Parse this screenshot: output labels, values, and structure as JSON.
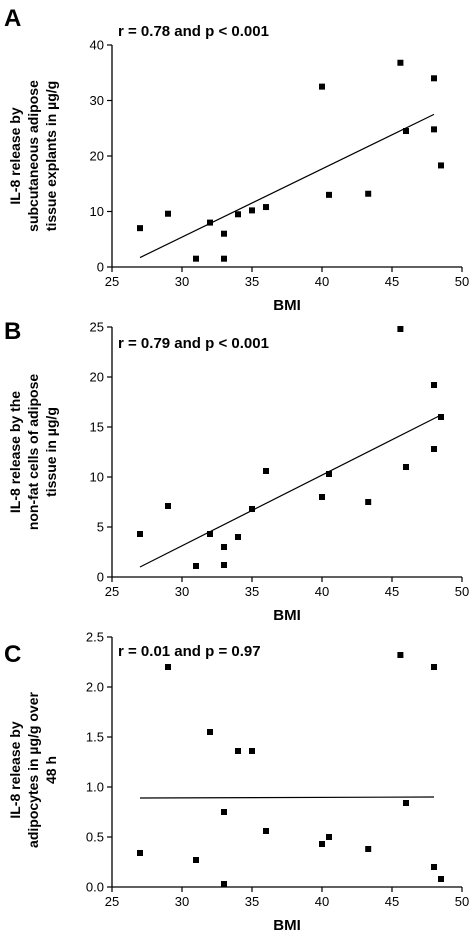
{
  "chart_data": [
    {
      "type": "scatter",
      "panel_label": "A",
      "title": "r = 0.78 and p < 0.001",
      "xlabel": "BMI",
      "ylabel_lines": [
        "IL-8 release by",
        "subcutaneous adipose",
        "tissue explants in µg/g"
      ],
      "xlim": [
        25,
        50
      ],
      "ylim": [
        0,
        40
      ],
      "xticks": [
        25,
        30,
        35,
        40,
        45,
        50
      ],
      "yticks": [
        0,
        10,
        20,
        30,
        40
      ],
      "grid": false,
      "points": [
        {
          "x": 27.0,
          "y": 7.0
        },
        {
          "x": 29.0,
          "y": 9.6
        },
        {
          "x": 31.0,
          "y": 1.5
        },
        {
          "x": 32.0,
          "y": 8.0
        },
        {
          "x": 33.0,
          "y": 1.5
        },
        {
          "x": 33.0,
          "y": 6.0
        },
        {
          "x": 34.0,
          "y": 9.5
        },
        {
          "x": 35.0,
          "y": 10.2
        },
        {
          "x": 36.0,
          "y": 10.8
        },
        {
          "x": 40.0,
          "y": 32.5
        },
        {
          "x": 40.5,
          "y": 13.0
        },
        {
          "x": 43.3,
          "y": 13.2
        },
        {
          "x": 45.6,
          "y": 36.8
        },
        {
          "x": 46.0,
          "y": 24.5
        },
        {
          "x": 48.0,
          "y": 34.0
        },
        {
          "x": 48.0,
          "y": 24.8
        },
        {
          "x": 48.5,
          "y": 18.3
        }
      ],
      "fit_line": [
        {
          "x": 27.0,
          "y": 1.7
        },
        {
          "x": 48.0,
          "y": 27.5
        }
      ]
    },
    {
      "type": "scatter",
      "panel_label": "B",
      "title": "r = 0.79 and p < 0.001",
      "xlabel": "BMI",
      "ylabel_lines": [
        "IL-8 release by the",
        "non-fat cells of adipose",
        "tissue in µg/g"
      ],
      "xlim": [
        25,
        50
      ],
      "ylim": [
        0,
        25
      ],
      "xticks": [
        25,
        30,
        35,
        40,
        45,
        50
      ],
      "yticks": [
        0,
        5,
        10,
        15,
        20,
        25
      ],
      "grid": false,
      "points": [
        {
          "x": 27.0,
          "y": 4.3
        },
        {
          "x": 29.0,
          "y": 7.1
        },
        {
          "x": 31.0,
          "y": 1.1
        },
        {
          "x": 32.0,
          "y": 4.3
        },
        {
          "x": 33.0,
          "y": 3.0
        },
        {
          "x": 33.0,
          "y": 1.2
        },
        {
          "x": 34.0,
          "y": 4.0
        },
        {
          "x": 35.0,
          "y": 6.8
        },
        {
          "x": 36.0,
          "y": 10.6
        },
        {
          "x": 40.0,
          "y": 8.0
        },
        {
          "x": 40.5,
          "y": 10.3
        },
        {
          "x": 43.3,
          "y": 7.5
        },
        {
          "x": 45.6,
          "y": 24.8
        },
        {
          "x": 46.0,
          "y": 11.0
        },
        {
          "x": 48.0,
          "y": 19.2
        },
        {
          "x": 48.0,
          "y": 12.8
        },
        {
          "x": 48.5,
          "y": 16.0
        }
      ],
      "fit_line": [
        {
          "x": 27.0,
          "y": 1.0
        },
        {
          "x": 48.5,
          "y": 16.2
        }
      ]
    },
    {
      "type": "scatter",
      "panel_label": "C",
      "title": "r = 0.01 and p = 0.97",
      "xlabel": "BMI",
      "ylabel_lines": [
        "IL-8 release by",
        "adipocytes in µg/g over",
        "48 h"
      ],
      "xlim": [
        25,
        50
      ],
      "ylim": [
        0,
        2.5
      ],
      "xticks": [
        25,
        30,
        35,
        40,
        45,
        50
      ],
      "yticks": [
        0.0,
        0.5,
        1.0,
        1.5,
        2.0,
        2.5
      ],
      "ytick_labels": [
        "0.0",
        "0.5",
        "1.0",
        "1.5",
        "2.0",
        "2.5"
      ],
      "grid": false,
      "points": [
        {
          "x": 27.0,
          "y": 0.34
        },
        {
          "x": 29.0,
          "y": 2.2
        },
        {
          "x": 31.0,
          "y": 0.27
        },
        {
          "x": 32.0,
          "y": 1.55
        },
        {
          "x": 33.0,
          "y": 0.75
        },
        {
          "x": 33.0,
          "y": 0.03
        },
        {
          "x": 34.0,
          "y": 1.36
        },
        {
          "x": 35.0,
          "y": 1.36
        },
        {
          "x": 36.0,
          "y": 0.56
        },
        {
          "x": 40.0,
          "y": 0.43
        },
        {
          "x": 40.5,
          "y": 0.5
        },
        {
          "x": 43.3,
          "y": 0.38
        },
        {
          "x": 45.6,
          "y": 2.32
        },
        {
          "x": 46.0,
          "y": 0.84
        },
        {
          "x": 48.0,
          "y": 2.2
        },
        {
          "x": 48.0,
          "y": 0.2
        },
        {
          "x": 48.5,
          "y": 0.08
        }
      ],
      "fit_line": [
        {
          "x": 27.0,
          "y": 0.89
        },
        {
          "x": 48.0,
          "y": 0.9
        }
      ]
    }
  ]
}
